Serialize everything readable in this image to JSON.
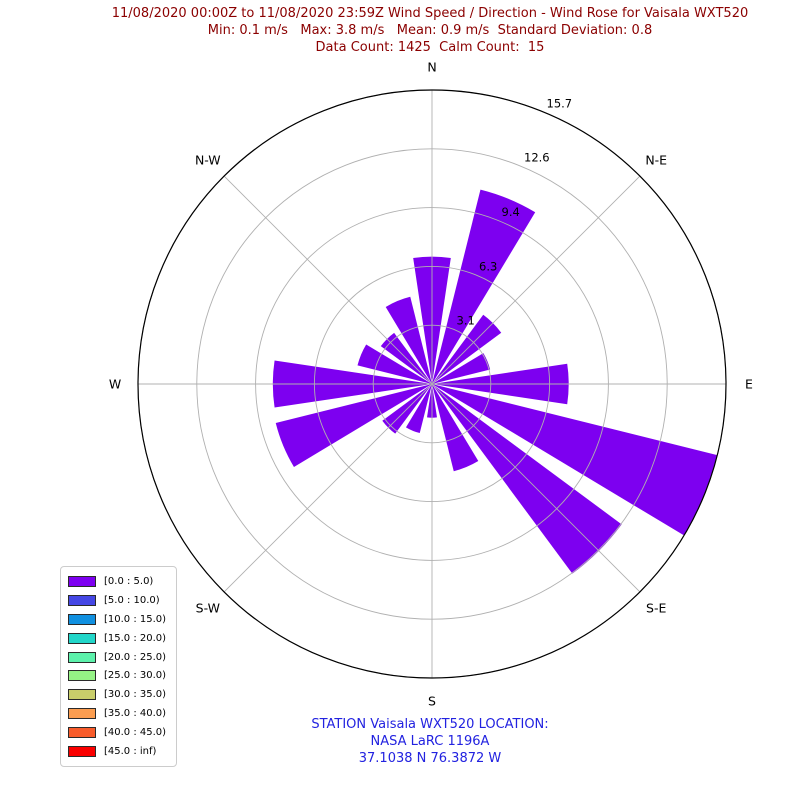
{
  "header": {
    "line1": "11/08/2020 00:00Z to 11/08/2020 23:59Z Wind Speed / Direction - Wind Rose for Vaisala WXT520",
    "line2": "Min: 0.1 m/s   Max: 3.8 m/s   Mean: 0.9 m/s  Standard Deviation: 0.8",
    "line3": "Data Count: 1425  Calm Count:  15",
    "color": "#8b0000"
  },
  "chart_data": {
    "type": "bar",
    "subtype": "windrose-polar",
    "units": "percent-frequency",
    "directions": [
      "N",
      "NNE",
      "NE",
      "ENE",
      "E",
      "ESE",
      "SE",
      "SSE",
      "S",
      "SSW",
      "SW",
      "WSW",
      "W",
      "WNW",
      "NW",
      "NNW"
    ],
    "bearings_deg": [
      0,
      22.5,
      45,
      67.5,
      90,
      112.5,
      135,
      157.5,
      180,
      202.5,
      225,
      247.5,
      270,
      292.5,
      315,
      337.5
    ],
    "series": [
      {
        "name": "[0.0 : 5.0)",
        "color": "#7d00f0",
        "values": [
          6.8,
          10.7,
          4.6,
          3.2,
          7.3,
          15.7,
          12.6,
          4.8,
          1.8,
          2.7,
          3.3,
          8.6,
          8.5,
          4.1,
          3.4,
          4.8
        ]
      }
    ],
    "r_axis": {
      "ticks": [
        "3.1",
        "6.3",
        "9.4",
        "12.6",
        "15.7"
      ],
      "tick_values": [
        3.14,
        6.28,
        9.42,
        12.56,
        15.7
      ],
      "max": 15.7,
      "label_bearing_deg": 22.5
    },
    "compass_labels": [
      {
        "label": "N",
        "bearing": 0
      },
      {
        "label": "N-E",
        "bearing": 45
      },
      {
        "label": "E",
        "bearing": 90
      },
      {
        "label": "S-E",
        "bearing": 135
      },
      {
        "label": "S",
        "bearing": 180
      },
      {
        "label": "S-W",
        "bearing": 225
      },
      {
        "label": "W",
        "bearing": 270
      },
      {
        "label": "N-W",
        "bearing": 315
      }
    ],
    "wedge_width_deg": 17,
    "grid": {
      "color": "#b0b0b0",
      "spine_color": "#000000",
      "spokes_every_deg": 45,
      "grid_on": true
    },
    "legend_position": "lower left"
  },
  "legend": {
    "items": [
      {
        "label": "[0.0 : 5.0)",
        "color": "#7d00f0"
      },
      {
        "label": "[5.0 : 10.0)",
        "color": "#4547e5"
      },
      {
        "label": "[10.0 : 15.0)",
        "color": "#1090e0"
      },
      {
        "label": "[15.0 : 20.0)",
        "color": "#22d6c9"
      },
      {
        "label": "[20.0 : 25.0)",
        "color": "#5cf1ab"
      },
      {
        "label": "[25.0 : 30.0)",
        "color": "#95f285"
      },
      {
        "label": "[30.0 : 35.0)",
        "color": "#c9ce6a"
      },
      {
        "label": "[35.0 : 40.0)",
        "color": "#fb9d50"
      },
      {
        "label": "[40.0 : 45.0)",
        "color": "#f85c2b"
      },
      {
        "label": "[45.0 : inf)",
        "color": "#fa0000"
      }
    ]
  },
  "footer": {
    "line1": "STATION Vaisala WXT520 LOCATION:",
    "line2": "NASA LaRC 1196A",
    "line3": "37.1038 N 76.3872 W",
    "color": "#2222e0"
  }
}
